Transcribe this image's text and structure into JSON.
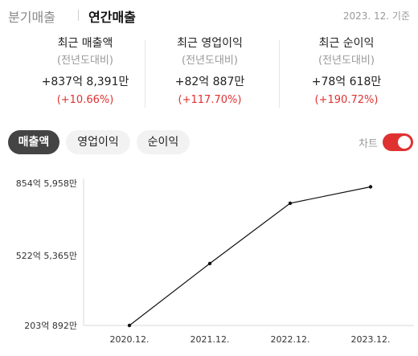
{
  "header": {
    "tabs": [
      {
        "label": "분기매출",
        "active": false
      },
      {
        "label": "연간매출",
        "active": true
      }
    ],
    "base_date": "2023. 12. 기준"
  },
  "summary": [
    {
      "title": "최근 매출액",
      "sub": "(전년도대비)",
      "value": "+837억 8,391만",
      "change": "(+10.66%)"
    },
    {
      "title": "최근 영업이익",
      "sub": "(전년도대비)",
      "value": "+82억 887만",
      "change": "(+117.70%)"
    },
    {
      "title": "최근 순이익",
      "sub": "(전년도대비)",
      "value": "+78억 618만",
      "change": "(+190.72%)"
    }
  ],
  "metric_tabs": [
    "매출액",
    "영업이익",
    "순이익"
  ],
  "toggle": {
    "label": "차트",
    "on": true
  },
  "colors": {
    "accent": "#e03131",
    "active_pill": "#444444",
    "line": "#111111"
  },
  "chart_data": {
    "type": "line",
    "categories": [
      "2020.12.",
      "2021.12.",
      "2022.12.",
      "2023.12."
    ],
    "values": [
      203.0892,
      487.0,
      763.0,
      838.0
    ],
    "y_ticks": [
      {
        "value": 203.0892,
        "label": "203억 892만"
      },
      {
        "value": 522.5365,
        "label": "522억 5,365만"
      },
      {
        "value": 854.5958,
        "label": "854억 5,958만"
      }
    ],
    "ylim": [
      203.0892,
      854.5958
    ],
    "grid": false,
    "legend": "none"
  }
}
